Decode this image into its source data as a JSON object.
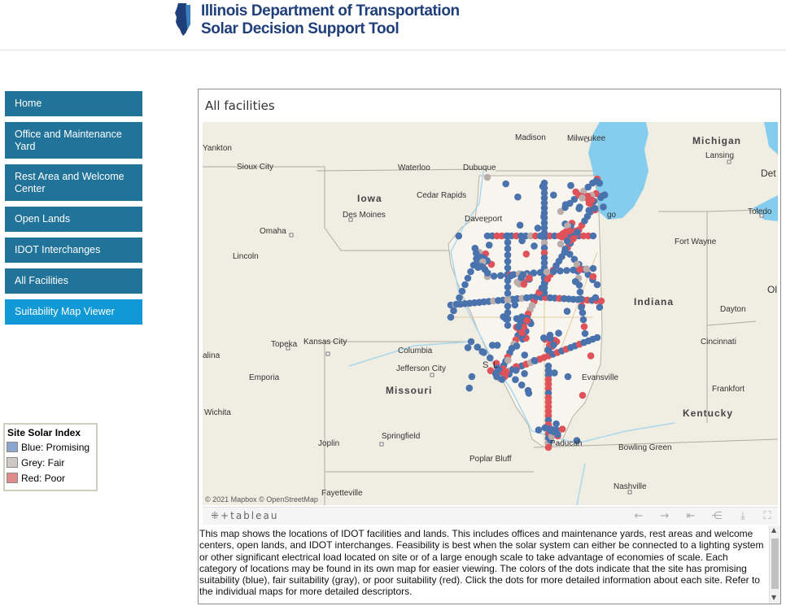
{
  "header": {
    "title_line1": "Illinois Department of Transportation",
    "title_line2": "Solar Decision Support Tool"
  },
  "nav": {
    "items": [
      {
        "label": "Home"
      },
      {
        "label": "Office and Maintenance Yard"
      },
      {
        "label": "Rest Area and Welcome Center"
      },
      {
        "label": "Open Lands"
      },
      {
        "label": "IDOT Interchanges"
      },
      {
        "label": "All Facilities"
      },
      {
        "label": "Suitability Map Viewer"
      }
    ]
  },
  "legend": {
    "title": "Site Solar Index",
    "items": [
      {
        "label": "Blue: Promising",
        "color": "#8aa6cf"
      },
      {
        "label": "Grey: Fair",
        "color": "#cfc9c6"
      },
      {
        "label": "Red: Poor",
        "color": "#e08a8a"
      }
    ]
  },
  "panel": {
    "title": "All facilities",
    "map": {
      "attribution": "© 2021 Mapbox  © OpenStreetMap",
      "labels": {
        "yankton": "Yankton",
        "sioux_city": "Sioux City",
        "iowa": "Iowa",
        "des_moines": "Des Moines",
        "waterloo": "Waterloo",
        "dubuque": "Dubuque",
        "cedar_rapids": "Cedar Rapids",
        "davenport": "Davenport",
        "madison": "Madison",
        "milwaukee": "Milwaukee",
        "michigan": "Michigan",
        "lansing": "Lansing",
        "det": "Det",
        "toledo": "Toledo",
        "chicago_frag": "go",
        "fort_wayne": "Fort Wayne",
        "omaha": "Omaha",
        "lincoln": "Lincoln",
        "indiana": "Indiana",
        "dayton": "Dayton",
        "oh": "Ol",
        "topeka": "Topeka",
        "kansas_city": "Kansas City",
        "salina_frag": "alina",
        "columbia": "Columbia",
        "jefferson_city": "Jefferson City",
        "missouri": "Missouri",
        "emporia": "Emporia",
        "stl_frag_s": "S",
        "stl_frag_l": "L",
        "cincinnati": "Cincinnati",
        "frankfort": "Frankfort",
        "kentucky": "Kentucky",
        "evansville": "Evansville",
        "wichita": "Wichita",
        "springfield": "Springfield",
        "joplin": "Joplin",
        "poplar_bluff": "Poplar Bluff",
        "paducah": "Paducah",
        "bowling_green": "Bowling Green",
        "nashville": "Nashville",
        "fayetteville": "Fayetteville"
      }
    },
    "toolbar": {
      "brand": "⁜+tableau"
    },
    "description": "This map shows the locations of IDOT facilities and lands. This includes offices and maintenance yards, rest areas and welcome centers, open lands, and IDOT interchanges. Feasibility is best when the solar system can either be connected to a lighting system or other significant electrical load located on site or of a large enough scale to take advantage of economies of scale. Each category of locations may be found in its own map for easier viewing. The colors of the dots indicate that the site has promising suitability (blue), fair suitability (gray), or poor suitability (red). Click the dots for more detailed information about each site. Refer to the individual maps for more detailed descriptors."
  }
}
